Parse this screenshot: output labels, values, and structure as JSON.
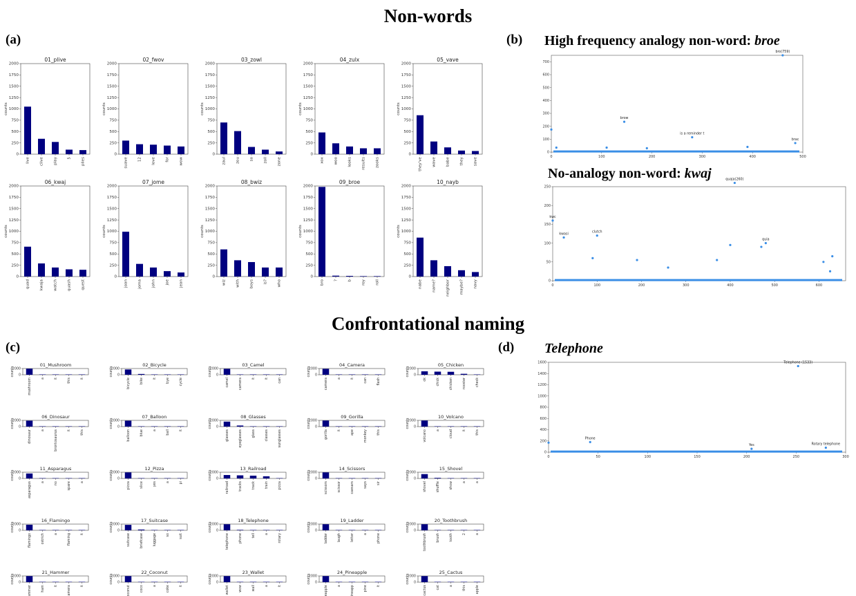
{
  "header_nonwords": "Non-words",
  "header_naming": "Confrontational naming",
  "panel_a_label": "(a)",
  "panel_b_label": "(b)",
  "panel_c_label": "(c)",
  "panel_d_label": "(d)",
  "panel_b_title1_prefix": "High frequency analogy non-word: ",
  "panel_b_title1_word": "broe",
  "panel_b_title2_prefix": "No-analogy non-word: ",
  "panel_b_title2_word": "kwaj",
  "panel_d_title": "Telephone",
  "colors": {
    "bar": "#000080",
    "scatter": "#3a8ee6"
  },
  "chart_data": [
    {
      "panel": "a",
      "type": "bar",
      "ylabel": "counts",
      "ylim": [
        0,
        2000
      ],
      "yticks": [
        0,
        250,
        500,
        750,
        1000,
        1250,
        1500,
        1750,
        2000
      ],
      "subplots": [
        {
          "title": "01_plive",
          "categories": [
            "live",
            "clive",
            "play",
            "5",
            "plies"
          ],
          "values": [
            1050,
            340,
            270,
            100,
            90
          ]
        },
        {
          "title": "02_fwov",
          "categories": [
            "suave",
            "12",
            "love",
            "for",
            "wow"
          ],
          "values": [
            300,
            220,
            210,
            190,
            170
          ]
        },
        {
          "title": "03_zowl",
          "categories": [
            "zaul",
            "zou",
            "so",
            "zoll",
            "zone"
          ],
          "values": [
            700,
            510,
            160,
            100,
            60
          ]
        },
        {
          "title": "04_zulx",
          "categories": [
            "xox",
            "woo",
            "looks",
            "results",
            "zooks"
          ],
          "values": [
            480,
            240,
            170,
            130,
            130
          ]
        },
        {
          "title": "05_vave",
          "categories": [
            "they've",
            "wave",
            "babe",
            "they",
            "save"
          ],
          "values": [
            860,
            280,
            150,
            80,
            70
          ]
        },
        {
          "title": "06_kwaj",
          "categories": [
            "quad",
            "kwaja",
            "watch",
            "quash",
            "quest"
          ],
          "values": [
            660,
            290,
            200,
            160,
            150
          ]
        },
        {
          "title": "07_jome",
          "categories": [
            "joan",
            "joma",
            "john",
            "joe",
            "jean"
          ],
          "values": [
            990,
            280,
            200,
            120,
            90
          ]
        },
        {
          "title": "08_bwiz",
          "categories": [
            "wiz",
            "with",
            "boys",
            "is?",
            "who"
          ],
          "values": [
            600,
            360,
            320,
            200,
            200
          ]
        },
        {
          "title": "09_broe",
          "categories": [
            "bro",
            "?",
            "b",
            "roy",
            "roll"
          ],
          "values": [
            1980,
            20,
            15,
            10,
            10
          ]
        },
        {
          "title": "10_nayb",
          "categories": [
            "nabe",
            "name?",
            "neighbor",
            "maybe?",
            "navy"
          ],
          "values": [
            860,
            360,
            230,
            140,
            100
          ]
        }
      ]
    },
    {
      "panel": "b1",
      "type": "scatter",
      "title": "High frequency analogy non-word: broe",
      "xlim": [
        0,
        500
      ],
      "xticks": [
        0,
        100,
        200,
        300,
        400,
        500
      ],
      "ylim": [
        0,
        750
      ],
      "yticks": [
        0,
        100,
        200,
        300,
        400,
        500,
        600,
        700
      ],
      "points": [
        {
          "x": 0,
          "y": 175
        },
        {
          "x": 10,
          "y": 35
        },
        {
          "x": 145,
          "y": 235,
          "label": "brow"
        },
        {
          "x": 280,
          "y": 115,
          "label": "is a reminder t"
        },
        {
          "x": 460,
          "y": 750,
          "label": "bro(759)"
        },
        {
          "x": 485,
          "y": 70,
          "label": "brac"
        },
        {
          "x": 110,
          "y": 35
        },
        {
          "x": 190,
          "y": 30
        },
        {
          "x": 390,
          "y": 40
        }
      ]
    },
    {
      "panel": "b2",
      "type": "scatter",
      "title": "No-analogy non-word: kwaj",
      "xlim": [
        0,
        660
      ],
      "xticks": [
        0,
        100,
        200,
        300,
        400,
        500,
        600
      ],
      "ylim": [
        0,
        250
      ],
      "yticks": [
        0,
        50,
        100,
        150,
        200,
        250
      ],
      "points": [
        {
          "x": 0,
          "y": 160,
          "label": "kwc"
        },
        {
          "x": 25,
          "y": 115,
          "label": "kwasi"
        },
        {
          "x": 100,
          "y": 120,
          "label": "clutch"
        },
        {
          "x": 410,
          "y": 260,
          "label": "quaja(260)"
        },
        {
          "x": 480,
          "y": 100,
          "label": "quia"
        },
        {
          "x": 90,
          "y": 60
        },
        {
          "x": 190,
          "y": 55
        },
        {
          "x": 260,
          "y": 35
        },
        {
          "x": 370,
          "y": 55
        },
        {
          "x": 400,
          "y": 95
        },
        {
          "x": 470,
          "y": 90
        },
        {
          "x": 610,
          "y": 50
        },
        {
          "x": 630,
          "y": 65
        },
        {
          "x": 625,
          "y": 25
        }
      ]
    },
    {
      "panel": "c",
      "type": "bar",
      "ylabel": "counts",
      "ylim": [
        0,
        2000
      ],
      "yticks": [
        0,
        2000
      ],
      "subplots": [
        {
          "title": "01_Mushroom",
          "categories": [
            "mushroom",
            "a",
            "it",
            "this",
            "it"
          ],
          "values": [
            1950,
            30,
            20,
            15,
            10
          ]
        },
        {
          "title": "02_Bicycle",
          "categories": [
            "bicycle",
            "bike",
            "it",
            "bye",
            "cycle"
          ],
          "values": [
            1700,
            250,
            30,
            20,
            15
          ]
        },
        {
          "title": "03_Camel",
          "categories": [
            "camel",
            "camera",
            "it",
            "it",
            "can"
          ],
          "values": [
            1900,
            60,
            20,
            15,
            10
          ]
        },
        {
          "title": "04_Camera",
          "categories": [
            "camera",
            "a",
            "it",
            "can",
            "flash"
          ],
          "values": [
            1900,
            40,
            20,
            15,
            10
          ]
        },
        {
          "title": "05_Chicken",
          "categories": [
            "ok",
            "chick",
            "chicken",
            "rooster",
            "check"
          ],
          "values": [
            1100,
            1000,
            950,
            300,
            50
          ]
        },
        {
          "title": "06_Dinosaur",
          "categories": [
            "dinosaur",
            "a",
            "brontosaurus",
            "it",
            "this"
          ],
          "values": [
            1900,
            60,
            30,
            20,
            10
          ]
        },
        {
          "title": "07_Balloon",
          "categories": [
            "balloon",
            "blue",
            "a",
            "ball",
            "it"
          ],
          "values": [
            1900,
            80,
            30,
            20,
            15
          ]
        },
        {
          "title": "08_Glasses",
          "categories": [
            "glasses",
            "eyeglasses",
            "glass",
            "classes",
            "sunglasses"
          ],
          "values": [
            1600,
            350,
            80,
            40,
            30
          ]
        },
        {
          "title": "09_Gorilla",
          "categories": [
            "gorilla",
            "it",
            "ape",
            "monkey",
            "this"
          ],
          "values": [
            1950,
            40,
            20,
            15,
            10
          ]
        },
        {
          "title": "10_Volcano",
          "categories": [
            "volcano",
            "a",
            "cloud",
            "it",
            "this"
          ],
          "values": [
            1950,
            30,
            20,
            15,
            10
          ]
        },
        {
          "title": "11_Asparagus",
          "categories": [
            "asparagus",
            "a",
            "no",
            "spare",
            "a"
          ],
          "values": [
            1600,
            60,
            30,
            20,
            15
          ]
        },
        {
          "title": "12_Pizza",
          "categories": [
            "pizza",
            "slice",
            "yes",
            "a",
            "pi"
          ],
          "values": [
            1950,
            40,
            20,
            15,
            10
          ]
        },
        {
          "title": "13_Railroad",
          "categories": [
            "railroad",
            "tracks",
            "track",
            "train",
            "pizza"
          ],
          "values": [
            1100,
            1000,
            900,
            700,
            40
          ]
        },
        {
          "title": "14_Scissors",
          "categories": [
            "scissors",
            "scissor",
            "caesars",
            "says",
            "sir"
          ],
          "values": [
            1950,
            40,
            20,
            15,
            10
          ]
        },
        {
          "title": "15_Shovel",
          "categories": [
            "shovel",
            "shuffle",
            "show",
            "a",
            "a"
          ],
          "values": [
            1400,
            200,
            40,
            20,
            15
          ]
        },
        {
          "title": "16_Flamingo",
          "categories": [
            "flamingo",
            "ostrich",
            "a",
            "flaming",
            "it"
          ],
          "values": [
            1800,
            60,
            20,
            15,
            10
          ]
        },
        {
          "title": "17_Suitcase",
          "categories": [
            "suitcase",
            "briefcase",
            "luggage",
            "so",
            "suit"
          ],
          "values": [
            1750,
            250,
            60,
            20,
            15
          ]
        },
        {
          "title": "18_Telephone",
          "categories": [
            "telephone",
            "phone",
            "tell",
            "a",
            "rotary"
          ],
          "values": [
            1950,
            150,
            40,
            20,
            10
          ]
        },
        {
          "title": "19_Ladder",
          "categories": [
            "ladder",
            "laugh",
            "letter",
            "a",
            "phone"
          ],
          "values": [
            1950,
            40,
            20,
            15,
            10
          ]
        },
        {
          "title": "20_Toothbrush",
          "categories": [
            "toothbrush",
            "brush",
            "tooth",
            "2",
            "a"
          ],
          "values": [
            1950,
            30,
            20,
            15,
            10
          ]
        },
        {
          "title": "21_Hammer",
          "categories": [
            "hammer",
            "ham",
            "it",
            "camera",
            "it"
          ],
          "values": [
            1950,
            30,
            20,
            15,
            10
          ]
        },
        {
          "title": "22_Coconut",
          "categories": [
            "coconut",
            "coco",
            "a",
            "coke",
            "it"
          ],
          "values": [
            1950,
            30,
            20,
            15,
            10
          ]
        },
        {
          "title": "23_Wallet",
          "categories": [
            "wallet",
            "wow",
            "wall",
            "a",
            "it"
          ],
          "values": [
            1950,
            30,
            20,
            15,
            10
          ]
        },
        {
          "title": "24_Pineapple",
          "categories": [
            "pineapple",
            "a",
            "pineapp",
            "pine",
            "it"
          ],
          "values": [
            1950,
            30,
            20,
            15,
            10
          ]
        },
        {
          "title": "25_Cactus",
          "categories": [
            "cactus",
            "cat",
            "a",
            "this",
            "apple"
          ],
          "values": [
            1950,
            30,
            20,
            15,
            10
          ]
        }
      ]
    },
    {
      "panel": "d",
      "type": "scatter",
      "title": "Telephone",
      "xlim": [
        0,
        300
      ],
      "xticks": [
        0,
        50,
        100,
        150,
        200,
        250,
        300
      ],
      "ylim": [
        0,
        1600
      ],
      "yticks": [
        0,
        200,
        400,
        600,
        800,
        1000,
        1200,
        1400,
        1600
      ],
      "points": [
        {
          "x": 0,
          "y": 170
        },
        {
          "x": 42,
          "y": 180,
          "label": "Phone"
        },
        {
          "x": 205,
          "y": 60,
          "label": "Yes"
        },
        {
          "x": 252,
          "y": 1533,
          "label": "Telephone (1533)"
        },
        {
          "x": 280,
          "y": 80,
          "label": "Rotary telephone"
        }
      ]
    }
  ]
}
